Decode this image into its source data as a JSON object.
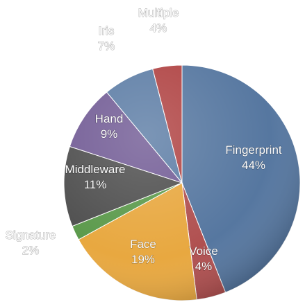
{
  "chart_data": {
    "type": "pie",
    "title": "",
    "start": "top, clockwise",
    "slices": [
      {
        "label": "Fingerprint",
        "value": 44,
        "pct_label": "44%",
        "color": "#5677a0"
      },
      {
        "label": "Voice",
        "value": 4,
        "pct_label": "4%",
        "color": "#b05050"
      },
      {
        "label": "Face",
        "value": 19,
        "pct_label": "19%",
        "color": "#e8a840"
      },
      {
        "label": "Signature",
        "value": 2,
        "pct_label": "2%",
        "color": "#5c9a4c"
      },
      {
        "label": "Middleware",
        "value": 11,
        "pct_label": "11%",
        "color": "#505050"
      },
      {
        "label": "Hand",
        "value": 9,
        "pct_label": "9%",
        "color": "#735d96"
      },
      {
        "label": "Iris",
        "value": 7,
        "pct_label": "7%",
        "color": "#5e7ea6"
      },
      {
        "label": "Multiple",
        "value": 4,
        "pct_label": "4%",
        "color": "#b04444"
      }
    ]
  }
}
